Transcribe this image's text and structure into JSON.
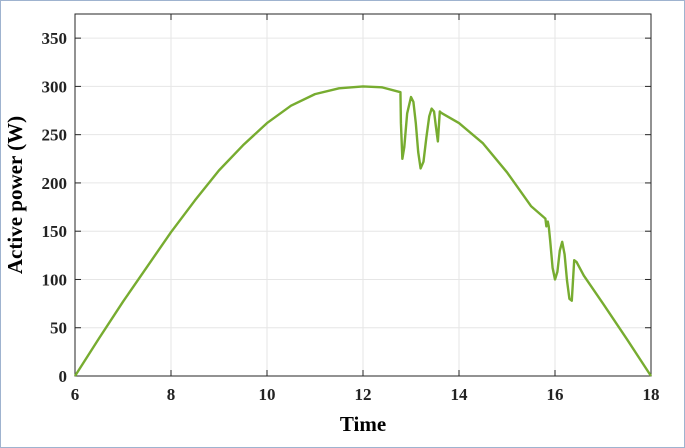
{
  "chart_data": {
    "type": "line",
    "title": "",
    "xlabel": "Time",
    "ylabel": "Active power (W)",
    "xlim": [
      6,
      18
    ],
    "ylim": [
      0,
      375
    ],
    "xticks": [
      6,
      8,
      10,
      12,
      14,
      16,
      18
    ],
    "yticks": [
      0,
      50,
      100,
      150,
      200,
      250,
      300,
      350
    ],
    "grid": true,
    "legend": "none",
    "colors": {
      "line": "#77ac30",
      "grid": "#e6e6e6",
      "axes": "#262626"
    },
    "series": [
      {
        "values_x": [
          6,
          6.5,
          7,
          7.5,
          8,
          8.5,
          9,
          9.5,
          10,
          10.5,
          11,
          11.5,
          12,
          12.4,
          12.78,
          12.79,
          12.82,
          12.86,
          12.92,
          13.0,
          13.05,
          13.1,
          13.15,
          13.2,
          13.26,
          13.32,
          13.38,
          13.43,
          13.48,
          13.52,
          13.56,
          13.6,
          13.62,
          13.65,
          14.0,
          14.5,
          15.0,
          15.5,
          15.8,
          15.82,
          15.85,
          15.87,
          15.9,
          15.95,
          16.0,
          16.05,
          16.1,
          16.15,
          16.2,
          16.25,
          16.3,
          16.35,
          16.4,
          16.45,
          16.6,
          17.0,
          17.5,
          18.0
        ],
        "values_y": [
          0,
          39,
          77,
          113,
          149,
          182,
          213,
          239,
          262,
          280,
          292,
          298,
          300,
          299,
          294,
          262,
          225,
          237,
          272,
          289,
          284,
          262,
          232,
          215,
          222,
          247,
          269,
          277,
          274,
          258,
          243,
          274,
          273,
          272,
          262,
          241,
          211,
          176,
          163,
          155,
          160,
          155,
          140,
          112,
          100,
          108,
          130,
          139,
          126,
          99,
          80,
          78,
          120,
          118,
          104,
          75,
          38,
          0
        ]
      }
    ]
  }
}
